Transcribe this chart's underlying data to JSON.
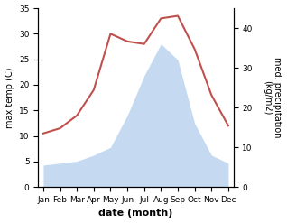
{
  "months": [
    "Jan",
    "Feb",
    "Mar",
    "Apr",
    "May",
    "Jun",
    "Jul",
    "Aug",
    "Sep",
    "Oct",
    "Nov",
    "Dec"
  ],
  "temperature": [
    10.5,
    11.5,
    14.0,
    19.0,
    30.0,
    28.5,
    28.0,
    33.0,
    33.5,
    27.0,
    18.0,
    12.0
  ],
  "precipitation": [
    5.5,
    6.0,
    6.5,
    8.0,
    10.0,
    18.0,
    28.0,
    36.0,
    32.0,
    16.0,
    8.0,
    6.0
  ],
  "temp_color": "#c0504d",
  "precip_fill_color": "#c5d9f1",
  "ylabel_left": "max temp (C)",
  "ylabel_right": "med. precipitation\n(kg/m2)",
  "xlabel": "date (month)",
  "ylim_left": [
    0,
    35
  ],
  "ylim_right": [
    0,
    45
  ],
  "yticks_left": [
    0,
    5,
    10,
    15,
    20,
    25,
    30,
    35
  ],
  "yticks_right": [
    0,
    10,
    20,
    30,
    40
  ],
  "bg_color": "#ffffff",
  "title_fontsize": 7,
  "axis_label_fontsize": 7,
  "tick_fontsize": 6.5
}
